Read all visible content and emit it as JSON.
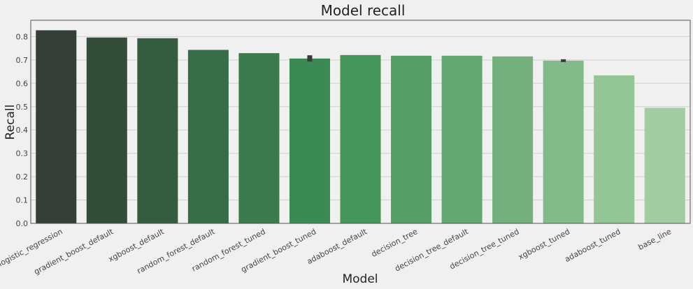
{
  "chart_data": {
    "type": "bar",
    "title": "Model recall",
    "xlabel": "Model",
    "ylabel": "Recall",
    "ylim": [
      0,
      0.87
    ],
    "yticks": [
      0.0,
      0.1,
      0.2,
      0.3,
      0.4,
      0.5,
      0.6,
      0.7,
      0.8
    ],
    "ytick_labels": [
      "0.0",
      "0.1",
      "0.2",
      "0.3",
      "0.4",
      "0.5",
      "0.6",
      "0.7",
      "0.8"
    ],
    "grid": "horizontal",
    "categories": [
      "logistic_regression",
      "gradient_boost_default",
      "xgboost_default",
      "random_forest_default",
      "random_forest_tuned",
      "gradient_boost_tuned",
      "adaboost_default",
      "decision_tree",
      "decision_tree_default",
      "decision_tree_tuned",
      "xgboost_tuned",
      "adaboost_tuned",
      "base_line"
    ],
    "values": [
      0.827,
      0.796,
      0.793,
      0.743,
      0.729,
      0.706,
      0.721,
      0.718,
      0.718,
      0.715,
      0.697,
      0.634,
      0.495
    ],
    "error_bars": [
      null,
      null,
      null,
      null,
      null,
      [
        0.693,
        0.72
      ],
      null,
      null,
      null,
      null,
      [
        0.691,
        0.703
      ],
      null,
      null
    ],
    "colors": [
      "#353f37",
      "#344c3a",
      "#345d40",
      "#386b48",
      "#3a7a4c",
      "#3c8a53",
      "#45955a",
      "#559e66",
      "#63a872",
      "#73b07d",
      "#82ba89",
      "#93c595",
      "#a2cca2"
    ],
    "error_color": "#3a3a3a"
  }
}
